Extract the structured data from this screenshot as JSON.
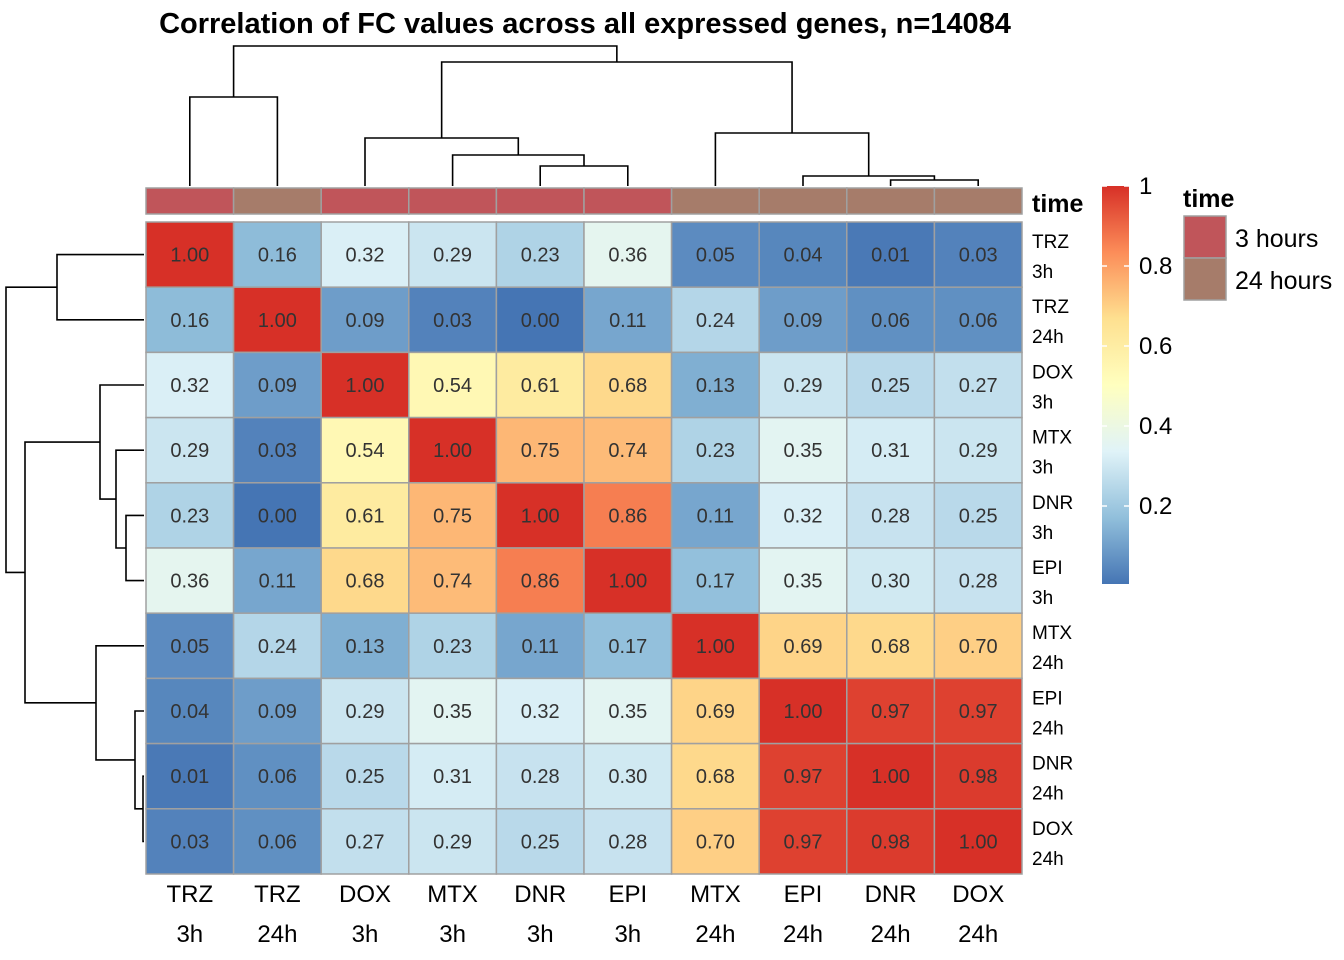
{
  "chart_data": {
    "type": "heatmap",
    "title": "Correlation of FC values across all expressed genes, n=14084",
    "columns": [
      {
        "drug": "TRZ",
        "time": "3h",
        "group": "3 hours"
      },
      {
        "drug": "TRZ",
        "time": "24h",
        "group": "24 hours"
      },
      {
        "drug": "DOX",
        "time": "3h",
        "group": "3 hours"
      },
      {
        "drug": "MTX",
        "time": "3h",
        "group": "3 hours"
      },
      {
        "drug": "DNR",
        "time": "3h",
        "group": "3 hours"
      },
      {
        "drug": "EPI",
        "time": "3h",
        "group": "3 hours"
      },
      {
        "drug": "MTX",
        "time": "24h",
        "group": "24 hours"
      },
      {
        "drug": "EPI",
        "time": "24h",
        "group": "24 hours"
      },
      {
        "drug": "DNR",
        "time": "24h",
        "group": "24 hours"
      },
      {
        "drug": "DOX",
        "time": "24h",
        "group": "24 hours"
      }
    ],
    "rows": [
      {
        "drug": "TRZ",
        "time": "3h"
      },
      {
        "drug": "TRZ",
        "time": "24h"
      },
      {
        "drug": "DOX",
        "time": "3h"
      },
      {
        "drug": "MTX",
        "time": "3h"
      },
      {
        "drug": "DNR",
        "time": "3h"
      },
      {
        "drug": "EPI",
        "time": "3h"
      },
      {
        "drug": "MTX",
        "time": "24h"
      },
      {
        "drug": "EPI",
        "time": "24h"
      },
      {
        "drug": "DNR",
        "time": "24h"
      },
      {
        "drug": "DOX",
        "time": "24h"
      }
    ],
    "values": [
      [
        1.0,
        0.16,
        0.32,
        0.29,
        0.23,
        0.36,
        0.05,
        0.04,
        0.01,
        0.03
      ],
      [
        0.16,
        1.0,
        0.09,
        0.03,
        0.0,
        0.11,
        0.24,
        0.09,
        0.06,
        0.06
      ],
      [
        0.32,
        0.09,
        1.0,
        0.54,
        0.61,
        0.68,
        0.13,
        0.29,
        0.25,
        0.27
      ],
      [
        0.29,
        0.03,
        0.54,
        1.0,
        0.75,
        0.74,
        0.23,
        0.35,
        0.31,
        0.29
      ],
      [
        0.23,
        0.0,
        0.61,
        0.75,
        1.0,
        0.86,
        0.11,
        0.32,
        0.28,
        0.25
      ],
      [
        0.36,
        0.11,
        0.68,
        0.74,
        0.86,
        1.0,
        0.17,
        0.35,
        0.3,
        0.28
      ],
      [
        0.05,
        0.24,
        0.13,
        0.23,
        0.11,
        0.17,
        1.0,
        0.69,
        0.68,
        0.7
      ],
      [
        0.04,
        0.09,
        0.29,
        0.35,
        0.32,
        0.35,
        0.69,
        1.0,
        0.97,
        0.97
      ],
      [
        0.01,
        0.06,
        0.25,
        0.31,
        0.28,
        0.3,
        0.68,
        0.97,
        1.0,
        0.98
      ],
      [
        0.03,
        0.06,
        0.27,
        0.29,
        0.25,
        0.28,
        0.7,
        0.97,
        0.98,
        1.0
      ]
    ],
    "annotation": {
      "title": "time",
      "legend_title": "time",
      "levels": [
        {
          "label": "3 hours",
          "color": "#C0555A"
        },
        {
          "label": "24 hours",
          "color": "#A67C6A"
        }
      ]
    },
    "color_scale": {
      "range": [
        0,
        1
      ],
      "ticks": [
        "0.2",
        "0.4",
        "0.6",
        "0.8",
        "1"
      ],
      "colors": [
        "#4575B4",
        "#91BFDB",
        "#E0F3F8",
        "#FFFFBF",
        "#FEE090",
        "#FC8D59",
        "#D73027"
      ]
    },
    "cell_border_color": "#A0A0A0",
    "legend_position": "right"
  }
}
